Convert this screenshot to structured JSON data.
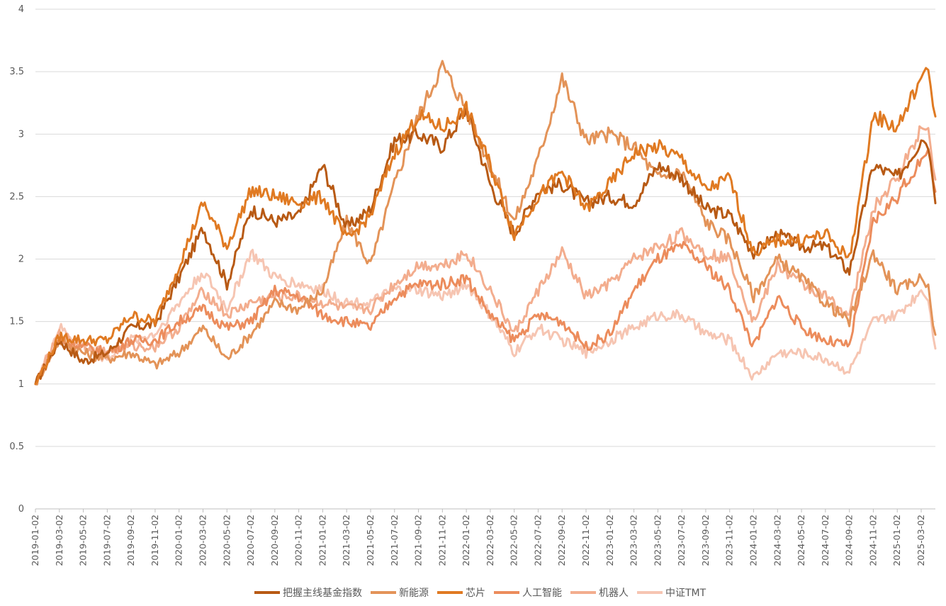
{
  "chart_data": {
    "type": "line",
    "title": "",
    "xlabel": "",
    "ylabel": "",
    "ylim": [
      0,
      4
    ],
    "yticks": [
      "0",
      "0.5",
      "1",
      "1.5",
      "2",
      "2.5",
      "3",
      "3.5",
      "4"
    ],
    "grid": true,
    "legend_position": "bottom",
    "categories": [
      "2019-01-02",
      "2019-03-02",
      "2019-05-02",
      "2019-07-02",
      "2019-09-02",
      "2019-11-02",
      "2020-01-02",
      "2020-03-02",
      "2020-05-02",
      "2020-07-02",
      "2020-09-02",
      "2020-11-02",
      "2021-01-02",
      "2021-03-02",
      "2021-05-02",
      "2021-07-02",
      "2021-09-02",
      "2021-11-02",
      "2022-01-02",
      "2022-03-02",
      "2022-05-02",
      "2022-07-02",
      "2022-09-02",
      "2022-11-02",
      "2023-01-02",
      "2023-03-02",
      "2023-05-02",
      "2023-07-02",
      "2023-09-02",
      "2023-11-02",
      "2024-01-02",
      "2024-03-02",
      "2024-05-02",
      "2024-07-02",
      "2024-09-02",
      "2024-11-02",
      "2025-01-02",
      "2025-03-02"
    ],
    "series": [
      {
        "name": "把握主线基金指数",
        "color": "#b85a14",
        "values": [
          1.0,
          1.35,
          1.18,
          1.25,
          1.45,
          1.48,
          1.85,
          2.25,
          1.8,
          2.4,
          2.3,
          2.35,
          2.75,
          2.25,
          2.4,
          2.95,
          3.0,
          2.9,
          3.2,
          2.6,
          2.2,
          2.55,
          2.6,
          2.45,
          2.5,
          2.45,
          2.75,
          2.65,
          2.4,
          2.35,
          2.05,
          2.2,
          2.1,
          2.1,
          1.9,
          2.75,
          2.65,
          2.95
        ]
      },
      {
        "name": "新能源",
        "color": "#e39358",
        "values": [
          1.0,
          1.35,
          1.25,
          1.2,
          1.25,
          1.15,
          1.25,
          1.45,
          1.2,
          1.4,
          1.65,
          1.6,
          1.75,
          2.3,
          1.95,
          2.6,
          3.15,
          3.55,
          3.2,
          2.75,
          2.3,
          2.8,
          3.45,
          2.95,
          3.0,
          2.9,
          2.65,
          2.7,
          2.3,
          2.15,
          1.7,
          2.0,
          1.85,
          1.65,
          1.5,
          2.05,
          1.75,
          1.85
        ]
      },
      {
        "name": "芯片",
        "color": "#e07a22",
        "values": [
          1.0,
          1.38,
          1.35,
          1.35,
          1.55,
          1.5,
          1.95,
          2.45,
          2.1,
          2.55,
          2.5,
          2.45,
          2.5,
          2.15,
          2.35,
          2.85,
          3.15,
          3.05,
          3.2,
          2.75,
          2.2,
          2.5,
          2.7,
          2.4,
          2.6,
          2.85,
          2.9,
          2.8,
          2.55,
          2.65,
          2.05,
          2.15,
          2.15,
          2.2,
          2.0,
          3.15,
          3.05,
          3.45
        ]
      },
      {
        "name": "人工智能",
        "color": "#ec8c5c",
        "values": [
          1.0,
          1.35,
          1.3,
          1.25,
          1.35,
          1.35,
          1.5,
          1.6,
          1.45,
          1.5,
          1.75,
          1.7,
          1.55,
          1.5,
          1.45,
          1.7,
          1.8,
          1.8,
          1.85,
          1.55,
          1.35,
          1.55,
          1.5,
          1.3,
          1.4,
          1.75,
          2.0,
          2.1,
          1.95,
          1.75,
          1.3,
          1.7,
          1.45,
          1.35,
          1.3,
          2.3,
          2.5,
          2.8
        ]
      },
      {
        "name": "机器人",
        "color": "#f3ad8e",
        "values": [
          1.0,
          1.4,
          1.3,
          1.25,
          1.3,
          1.3,
          1.45,
          1.75,
          1.55,
          1.65,
          1.7,
          1.7,
          1.65,
          1.6,
          1.6,
          1.8,
          1.95,
          1.95,
          2.05,
          1.75,
          1.4,
          1.75,
          2.05,
          1.7,
          1.8,
          2.0,
          2.1,
          2.2,
          2.05,
          2.0,
          1.5,
          1.95,
          1.8,
          1.7,
          1.55,
          2.4,
          2.65,
          3.05
        ]
      },
      {
        "name": "中证TMT",
        "color": "#f6c5b2",
        "values": [
          1.0,
          1.45,
          1.3,
          1.2,
          1.35,
          1.4,
          1.65,
          1.9,
          1.6,
          2.05,
          1.85,
          1.8,
          1.75,
          1.65,
          1.65,
          1.75,
          1.75,
          1.7,
          1.8,
          1.55,
          1.25,
          1.45,
          1.35,
          1.25,
          1.35,
          1.45,
          1.55,
          1.55,
          1.4,
          1.35,
          1.05,
          1.25,
          1.25,
          1.2,
          1.1,
          1.5,
          1.55,
          1.75
        ]
      }
    ]
  }
}
